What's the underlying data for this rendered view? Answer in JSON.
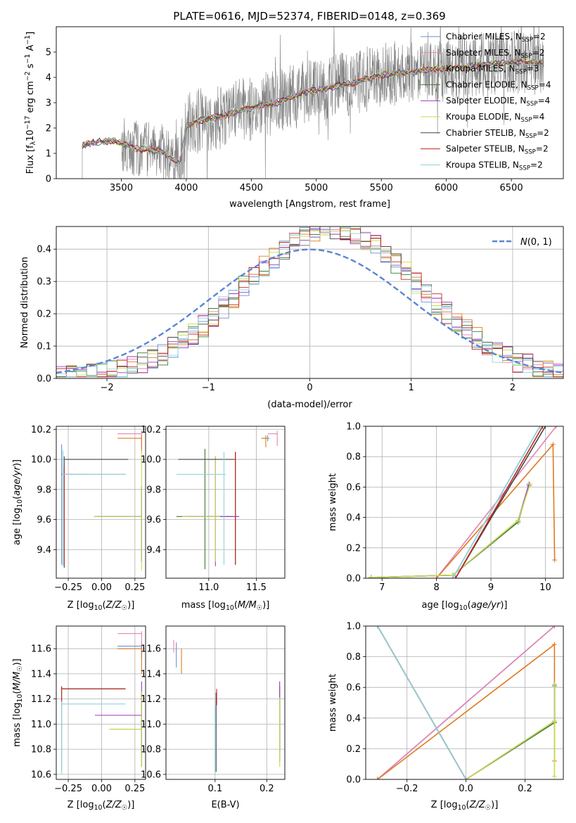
{
  "figure": {
    "title": "PLATE=0616, MJD=52374, FIBERID=0148, z=0.369"
  },
  "colors": {
    "Chabrier MILES": "#6a8fd0",
    "Salpeter MILES": "#e582b4",
    "Kroupa MILES": "#e07a20",
    "Chabrier ELODIE": "#3d7a2e",
    "Salpeter ELODIE": "#9b36c0",
    "Kroupa ELODIE": "#c3dd4e",
    "Chabrier STELIB": "#454545",
    "Salpeter STELIB": "#c0261c",
    "Kroupa STELIB": "#8ed3dc",
    "spectrum": "#7f7f7f",
    "gaussian": "#5b85d1"
  },
  "chart_data": [
    {
      "id": "spectrum",
      "type": "line",
      "xlabel": "wavelength [Angstrom, rest frame]",
      "ylabel": "Flux [f_λ 10^-17 erg cm^-2 s^-1 A^-1]",
      "xlim": [
        3000,
        6900
      ],
      "ylim": [
        0,
        6.0
      ],
      "xticks": [
        3500,
        4000,
        4500,
        5000,
        5500,
        6000,
        6500
      ],
      "yticks": [
        0,
        1,
        2,
        3,
        4,
        5
      ],
      "grid": false,
      "legend_position": "right",
      "legend": [
        {
          "label": "Chabrier MILES, N",
          "sub": "SSP",
          "suffix": "=2"
        },
        {
          "label": "Salpeter MILES, N",
          "sub": "SSP",
          "suffix": "=2"
        },
        {
          "label": "Kroupa MILES, N",
          "sub": "SSP",
          "suffix": "=3"
        },
        {
          "label": "Chabrier ELODIE, N",
          "sub": "SSP",
          "suffix": "=4"
        },
        {
          "label": "Salpeter ELODIE, N",
          "sub": "SSP",
          "suffix": "=4"
        },
        {
          "label": "Kroupa ELODIE, N",
          "sub": "SSP",
          "suffix": "=4"
        },
        {
          "label": "Chabrier STELIB, N",
          "sub": "SSP",
          "suffix": "=2"
        },
        {
          "label": "Salpeter STELIB, N",
          "sub": "SSP",
          "suffix": "=2"
        },
        {
          "label": "Kroupa STELIB, N",
          "sub": "SSP",
          "suffix": "=2"
        }
      ],
      "spectrum_range": [
        3200,
        6750
      ],
      "model_continuum": [
        [
          3200,
          1.3
        ],
        [
          3300,
          1.45
        ],
        [
          3450,
          1.5
        ],
        [
          3600,
          1.2
        ],
        [
          3800,
          1.1
        ],
        [
          3950,
          0.6
        ],
        [
          4000,
          2.1
        ],
        [
          4100,
          2.3
        ],
        [
          4300,
          2.5
        ],
        [
          4500,
          2.8
        ],
        [
          4700,
          3.0
        ],
        [
          4900,
          3.4
        ],
        [
          5100,
          3.6
        ],
        [
          5300,
          3.8
        ],
        [
          5500,
          4.1
        ],
        [
          5700,
          4.2
        ],
        [
          5900,
          4.3
        ],
        [
          6100,
          4.4
        ],
        [
          6300,
          4.5
        ],
        [
          6500,
          4.6
        ],
        [
          6750,
          4.6
        ]
      ]
    },
    {
      "id": "residuals",
      "type": "area",
      "xlabel": "(data-model)/error",
      "ylabel": "Normed distribution",
      "xlim": [
        -2.5,
        2.5
      ],
      "ylim": [
        0,
        0.47
      ],
      "xticks": [
        -2,
        -1,
        0,
        1,
        2
      ],
      "yticks": [
        0.0,
        0.1,
        0.2,
        0.3,
        0.4
      ],
      "grid": true,
      "legend_position": "top-right",
      "legend": [
        {
          "label": "N(0, 1)"
        }
      ],
      "bin_width": 0.1
    },
    {
      "id": "age_vs_Z",
      "type": "scatter",
      "xlabel": "Z [log10(Z/Z☉)]",
      "ylabel": "age  [log10(age/yr)]",
      "xlim": [
        -0.34,
        0.33
      ],
      "ylim": [
        9.21,
        10.22
      ],
      "xticks": [
        -0.25,
        0.0,
        0.25
      ],
      "yticks": [
        9.4,
        9.6,
        9.8,
        10.0,
        10.2
      ],
      "grid": true,
      "points": [
        {
          "series": "Chabrier MILES",
          "x": -0.3,
          "y": 9.9,
          "xerr": [
            0,
            0.2
          ],
          "yerr": [
            0.6,
            0.2
          ]
        },
        {
          "series": "Salpeter MILES",
          "x": 0.3,
          "y": 10.17,
          "xerr": [
            0.18,
            0
          ],
          "yerr": [
            0.1,
            0.02
          ]
        },
        {
          "series": "Kroupa MILES",
          "x": 0.3,
          "y": 10.14,
          "xerr": [
            0.18,
            0
          ],
          "yerr": [
            0.1,
            0.02
          ]
        },
        {
          "series": "Chabrier ELODIE",
          "x": 0.3,
          "y": 9.62,
          "xerr": [
            0.35,
            0
          ],
          "yerr": [
            0.3,
            0.2
          ]
        },
        {
          "series": "Salpeter ELODIE",
          "x": 0.3,
          "y": 9.62,
          "xerr": [
            0.33,
            0
          ],
          "yerr": [
            0.3,
            0.2
          ]
        },
        {
          "series": "Kroupa ELODIE",
          "x": 0.3,
          "y": 9.62,
          "xerr": [
            0.36,
            0
          ],
          "yerr": [
            0.36,
            0.44
          ]
        },
        {
          "series": "Chabrier STELIB",
          "x": -0.28,
          "y": 10.0,
          "xerr": [
            0,
            0.48
          ],
          "yerr": [
            0.72,
            0.02
          ]
        },
        {
          "series": "Salpeter STELIB",
          "x": -0.28,
          "y": 9.9,
          "xerr": [
            0,
            0.46
          ],
          "yerr": [
            0.6,
            0.05
          ]
        },
        {
          "series": "Kroupa STELIB",
          "x": -0.29,
          "y": 9.9,
          "xerr": [
            0,
            0.47
          ],
          "yerr": [
            0.61,
            0.16
          ]
        }
      ]
    },
    {
      "id": "age_vs_mass",
      "type": "scatter",
      "xlabel": "mass [log10(M/M☉)]",
      "ylabel": "",
      "xlim": [
        10.55,
        11.8
      ],
      "ylim": [
        9.21,
        10.22
      ],
      "xticks": [
        11.0,
        11.5
      ],
      "yticks": [
        9.4,
        9.6,
        9.8,
        10.0,
        10.2
      ],
      "grid": true,
      "points": [
        {
          "series": "Chabrier MILES",
          "x": 11.62,
          "y": 10.14,
          "xerr": [
            0.05,
            0.02
          ],
          "yerr": [
            0.02,
            0.02
          ]
        },
        {
          "series": "Salpeter MILES",
          "x": 11.72,
          "y": 10.17,
          "xerr": [
            0.1,
            0
          ],
          "yerr": [
            0.08,
            0.02
          ]
        },
        {
          "series": "Kroupa MILES",
          "x": 11.6,
          "y": 10.14,
          "xerr": [
            0.05,
            0.02
          ],
          "yerr": [
            0.06,
            0.02
          ]
        },
        {
          "series": "Chabrier ELODIE",
          "x": 10.96,
          "y": 9.62,
          "xerr": [
            0.3,
            0.3
          ],
          "yerr": [
            0.35,
            0.45
          ]
        },
        {
          "series": "Salpeter ELODIE",
          "x": 11.07,
          "y": 9.62,
          "xerr": [
            0.3,
            0.25
          ],
          "yerr": [
            0.33,
            0.4
          ]
        },
        {
          "series": "Kroupa ELODIE",
          "x": 11.07,
          "y": 9.62,
          "xerr": [
            0.35,
            0.05
          ],
          "yerr": [
            0.3,
            0.4
          ]
        },
        {
          "series": "Chabrier STELIB",
          "x": 11.28,
          "y": 10.0,
          "xerr": [
            0.6,
            0
          ],
          "yerr": [
            0.7,
            0.05
          ]
        },
        {
          "series": "Salpeter STELIB",
          "x": 11.28,
          "y": 10.0,
          "xerr": [
            0.02,
            0
          ],
          "yerr": [
            0.7,
            0.05
          ]
        },
        {
          "series": "Kroupa STELIB",
          "x": 11.16,
          "y": 9.9,
          "xerr": [
            0.5,
            0.02
          ],
          "yerr": [
            0.6,
            0.15
          ]
        }
      ]
    },
    {
      "id": "cumulative_mass_vs_age",
      "type": "line",
      "xlabel": "age  [log10(age/yr)]",
      "ylabel": "mass weight",
      "xlim": [
        6.7,
        10.33
      ],
      "ylim": [
        0,
        1.0
      ],
      "xticks": [
        7,
        8,
        9,
        10
      ],
      "yticks": [
        0.0,
        0.2,
        0.4,
        0.6,
        0.8,
        1.0
      ],
      "grid": true,
      "series": [
        {
          "name": "Chabrier MILES",
          "x": [
            8.3,
            9.9
          ],
          "y": [
            0.0,
            1.0
          ]
        },
        {
          "name": "Salpeter MILES",
          "x": [
            8.0,
            10.2
          ],
          "y": [
            0.0,
            1.0
          ]
        },
        {
          "name": "Kroupa MILES",
          "x": [
            8.0,
            10.14,
            10.17
          ],
          "y": [
            0.0,
            0.88,
            0.12
          ]
        },
        {
          "name": "Chabrier ELODIE",
          "x": [
            6.8,
            8.3,
            9.5,
            9.7
          ],
          "y": [
            0.005,
            0.02,
            0.37,
            0.61
          ]
        },
        {
          "name": "Salpeter ELODIE",
          "x": [
            6.8,
            8.3,
            9.5,
            9.7
          ],
          "y": [
            0.005,
            0.02,
            0.38,
            0.62
          ]
        },
        {
          "name": "Kroupa ELODIE",
          "x": [
            6.8,
            8.3,
            9.5,
            9.72
          ],
          "y": [
            0.005,
            0.02,
            0.38,
            0.62
          ]
        },
        {
          "name": "Chabrier STELIB",
          "x": [
            8.35,
            10.0
          ],
          "y": [
            0.0,
            1.0
          ]
        },
        {
          "name": "Salpeter STELIB",
          "x": [
            8.35,
            9.95
          ],
          "y": [
            0.0,
            1.0
          ]
        },
        {
          "name": "Kroupa STELIB",
          "x": [
            8.3,
            9.9
          ],
          "y": [
            0.0,
            1.0
          ]
        }
      ]
    },
    {
      "id": "mass_vs_Z",
      "type": "scatter",
      "xlabel": "Z [log10(Z/Z☉)]",
      "ylabel": "mass [log10(M/M☉)]",
      "xlim": [
        -0.34,
        0.33
      ],
      "ylim": [
        10.56,
        11.78
      ],
      "xticks": [
        -0.25,
        0.0,
        0.25
      ],
      "yticks": [
        10.6,
        10.8,
        11.0,
        11.2,
        11.4,
        11.6
      ],
      "grid": true,
      "points": [
        {
          "series": "Chabrier MILES",
          "x": 0.3,
          "y": 11.62,
          "xerr": [
            0.18,
            0
          ],
          "yerr": [
            0.1,
            0.02
          ]
        },
        {
          "series": "Salpeter MILES",
          "x": 0.3,
          "y": 11.72,
          "xerr": [
            0.18,
            0
          ],
          "yerr": [
            0.1,
            0.02
          ]
        },
        {
          "series": "Kroupa MILES",
          "x": 0.3,
          "y": 11.6,
          "xerr": [
            0.18,
            0
          ],
          "yerr": [
            0.2,
            0.02
          ]
        },
        {
          "series": "Chabrier ELODIE",
          "x": 0.3,
          "y": 10.96,
          "xerr": [
            0.24,
            0
          ],
          "yerr": [
            0.3,
            0.3
          ]
        },
        {
          "series": "Salpeter ELODIE",
          "x": 0.3,
          "y": 11.07,
          "xerr": [
            0.35,
            0
          ],
          "yerr": [
            0.3,
            0.27
          ]
        },
        {
          "series": "Kroupa ELODIE",
          "x": 0.3,
          "y": 10.96,
          "xerr": [
            0.24,
            0
          ],
          "yerr": [
            0.3,
            0.3
          ]
        },
        {
          "series": "Chabrier STELIB",
          "x": -0.3,
          "y": 11.28,
          "xerr": [
            0,
            0.48
          ],
          "yerr": [
            0.65,
            0.02
          ]
        },
        {
          "series": "Salpeter STELIB",
          "x": -0.3,
          "y": 11.28,
          "xerr": [
            0,
            0.48
          ],
          "yerr": [
            0.1,
            0.02
          ]
        },
        {
          "series": "Kroupa STELIB",
          "x": -0.3,
          "y": 11.16,
          "xerr": [
            0,
            0.48
          ],
          "yerr": [
            0.56,
            0.02
          ]
        }
      ]
    },
    {
      "id": "mass_vs_ebv",
      "type": "scatter",
      "xlabel": "E(B-V)",
      "ylabel": "",
      "xlim": [
        0.005,
        0.235
      ],
      "ylim": [
        10.56,
        11.78
      ],
      "xticks": [
        0.1,
        0.2
      ],
      "yticks": [
        10.6,
        10.8,
        11.0,
        11.2,
        11.4,
        11.6
      ],
      "grid": true,
      "points": [
        {
          "series": "Chabrier MILES",
          "x": 0.025,
          "y": 11.55,
          "xerr": [
            0,
            0
          ],
          "yerr": [
            0.1,
            0.1
          ]
        },
        {
          "series": "Salpeter MILES",
          "x": 0.02,
          "y": 11.62,
          "xerr": [
            0,
            0
          ],
          "yerr": [
            0.05,
            0.05
          ]
        },
        {
          "series": "Kroupa MILES",
          "x": 0.035,
          "y": 11.5,
          "xerr": [
            0,
            0
          ],
          "yerr": [
            0.1,
            0.1
          ]
        },
        {
          "series": "Chabrier ELODIE",
          "x": 0.225,
          "y": 11.0,
          "xerr": [
            0,
            0
          ],
          "yerr": [
            0.3,
            0.3
          ]
        },
        {
          "series": "Salpeter ELODIE",
          "x": 0.225,
          "y": 11.07,
          "xerr": [
            0,
            0
          ],
          "yerr": [
            0.3,
            0.27
          ]
        },
        {
          "series": "Kroupa ELODIE",
          "x": 0.225,
          "y": 10.96,
          "xerr": [
            0,
            0
          ],
          "yerr": [
            0.3,
            0.25
          ]
        },
        {
          "series": "Chabrier STELIB",
          "x": 0.102,
          "y": 11.1,
          "xerr": [
            0,
            0
          ],
          "yerr": [
            0.48,
            0.15
          ]
        },
        {
          "series": "Salpeter STELIB",
          "x": 0.103,
          "y": 11.2,
          "xerr": [
            0,
            0
          ],
          "yerr": [
            0.05,
            0.08
          ]
        },
        {
          "series": "Kroupa STELIB",
          "x": 0.1,
          "y": 11.1,
          "xerr": [
            0,
            0
          ],
          "yerr": [
            0.5,
            0.05
          ]
        }
      ]
    },
    {
      "id": "cumulative_mass_vs_Z",
      "type": "line",
      "xlabel": "Z [log10(Z/Z☉)]",
      "ylabel": "mass weight",
      "xlim": [
        -0.34,
        0.33
      ],
      "ylim": [
        0,
        1.0
      ],
      "xticks": [
        -0.2,
        0.0,
        0.2
      ],
      "yticks": [
        0.0,
        0.2,
        0.4,
        0.6,
        0.8,
        1.0
      ],
      "grid": true,
      "series": [
        {
          "name": "Chabrier MILES",
          "x": [
            -0.3,
            0.3
          ],
          "y": [
            0.0,
            1.0
          ]
        },
        {
          "name": "Salpeter MILES",
          "x": [
            -0.3,
            0.3
          ],
          "y": [
            0.0,
            1.0
          ]
        },
        {
          "name": "Kroupa MILES",
          "x": [
            -0.3,
            0.3,
            0.3
          ],
          "y": [
            0.0,
            0.88,
            0.12
          ]
        },
        {
          "name": "Chabrier ELODIE",
          "x": [
            0.0,
            0.3,
            0.3
          ],
          "y": [
            0.0,
            0.37,
            0.61
          ]
        },
        {
          "name": "Salpeter ELODIE",
          "x": [
            0.0,
            0.3,
            0.3
          ],
          "y": [
            0.0,
            0.38,
            0.62
          ]
        },
        {
          "name": "Kroupa ELODIE",
          "x": [
            0.0,
            0.3,
            0.3,
            0.3
          ],
          "y": [
            0.0,
            0.38,
            0.62,
            0.02
          ]
        },
        {
          "name": "Chabrier STELIB",
          "x": [
            -0.3,
            0.0
          ],
          "y": [
            1.0,
            0.0
          ]
        },
        {
          "name": "Salpeter STELIB",
          "x": [
            -0.3,
            0.0
          ],
          "y": [
            1.0,
            0.0
          ]
        },
        {
          "name": "Kroupa STELIB",
          "x": [
            -0.3,
            0.0
          ],
          "y": [
            1.0,
            0.0
          ]
        }
      ]
    }
  ]
}
